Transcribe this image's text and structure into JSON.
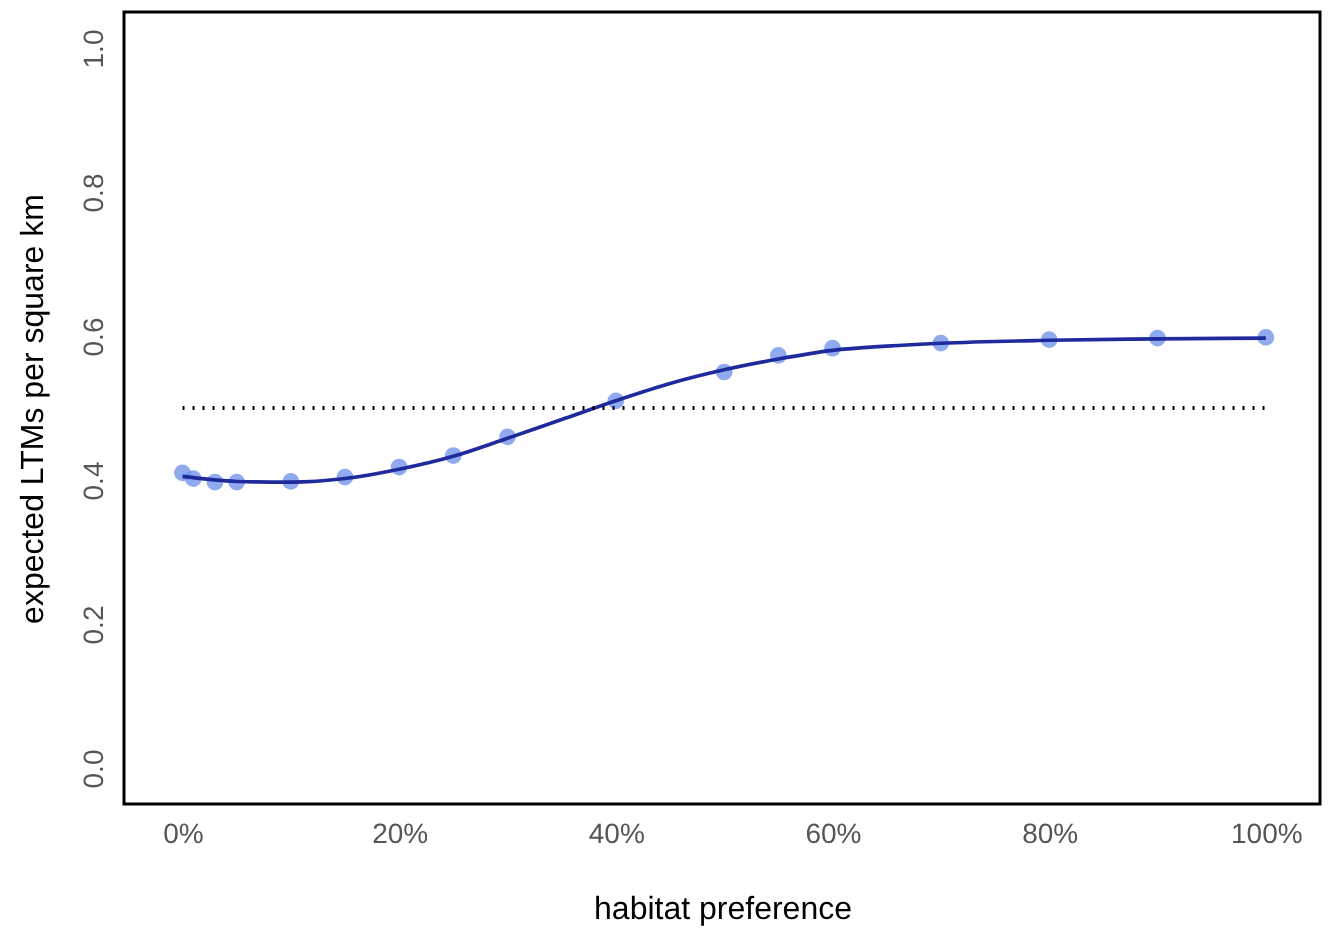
{
  "chart_data": {
    "type": "scatter",
    "xlabel": "habitat preference",
    "ylabel": "expected LTMs per square km",
    "xlim": [
      -5.4,
      105
    ],
    "ylim": [
      -0.05,
      1.05
    ],
    "xticks": [
      {
        "value": 0,
        "label": "0%"
      },
      {
        "value": 20,
        "label": "20%"
      },
      {
        "value": 40,
        "label": "40%"
      },
      {
        "value": 60,
        "label": "60%"
      },
      {
        "value": 80,
        "label": "80%"
      },
      {
        "value": 100,
        "label": "100%"
      }
    ],
    "yticks": [
      {
        "value": 0,
        "label": "0.0"
      },
      {
        "value": 0.2,
        "label": "0.2"
      },
      {
        "value": 0.4,
        "label": "0.4"
      },
      {
        "value": 0.6,
        "label": "0.6"
      },
      {
        "value": 0.8,
        "label": "0.8"
      },
      {
        "value": 1,
        "label": "1.0"
      }
    ],
    "grid": false,
    "series": [
      {
        "color": "#6a8de8",
        "marker": "circle",
        "x": [
          0,
          1,
          3,
          5,
          10,
          15,
          20,
          25,
          30,
          40,
          50,
          55,
          60,
          70,
          80,
          90,
          100
        ],
        "values": [
          0.41,
          0.402,
          0.397,
          0.397,
          0.398,
          0.404,
          0.418,
          0.434,
          0.46,
          0.51,
          0.55,
          0.573,
          0.583,
          0.59,
          0.595,
          0.597,
          0.598
        ]
      },
      {
        "type": "line",
        "color": "#1f2a9c",
        "line_style": "solid",
        "x": [
          0,
          5,
          10,
          15,
          20,
          25,
          30,
          35,
          40,
          45,
          50,
          55,
          60,
          65,
          70,
          80,
          90,
          100
        ],
        "values": [
          0.405,
          0.398,
          0.397,
          0.402,
          0.415,
          0.433,
          0.458,
          0.484,
          0.51,
          0.534,
          0.553,
          0.568,
          0.58,
          0.586,
          0.59,
          0.594,
          0.596,
          0.597
        ]
      }
    ],
    "ref_lines": [
      {
        "axis": "y",
        "value": 0.5,
        "color": "#000000",
        "line_style": "dotted"
      }
    ]
  }
}
